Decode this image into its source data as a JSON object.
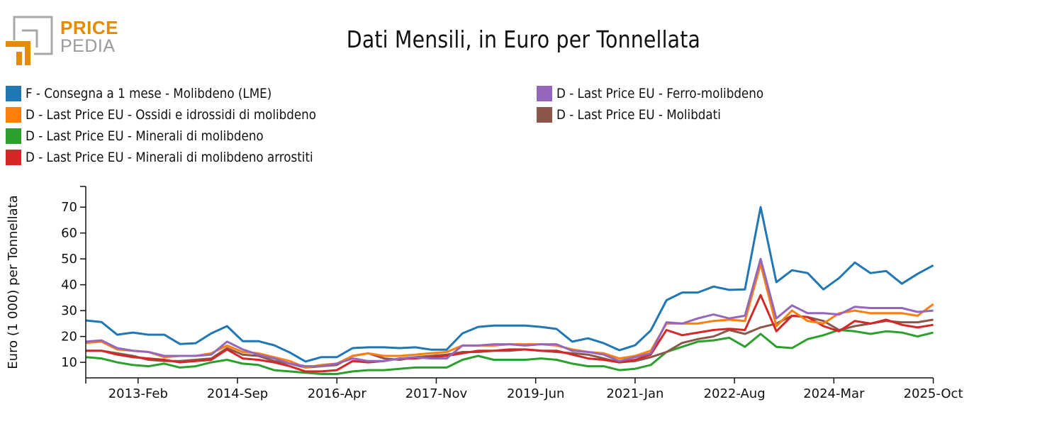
{
  "brand": {
    "line1": "PRICE",
    "line2": "PEDIA",
    "accent": "#e68a00",
    "gray": "#9a9a9a"
  },
  "chart_data": {
    "type": "line",
    "title": "Dati Mensili, in Euro per Tonnellata",
    "xlabel": "",
    "ylabel": "Euro (1 000) per Tonnellata",
    "ylim": [
      4,
      78
    ],
    "yticks": [
      10,
      20,
      30,
      40,
      50,
      60,
      70
    ],
    "xtick_labels": [
      "2013-Feb",
      "2014-Sep",
      "2016-Apr",
      "2017-Nov",
      "2019-Jun",
      "2021-Jan",
      "2022-Aug",
      "2024-Mar",
      "2025-Oct"
    ],
    "xtick_months": [
      10,
      29,
      48,
      67,
      86,
      105,
      124,
      143,
      162
    ],
    "x_start": "2012-Apr",
    "x_step_months": 3,
    "legend_placement": "top-left",
    "grid": false,
    "x": [
      "2012-Apr",
      "2012-Jul",
      "2012-Oct",
      "2013-Jan",
      "2013-Apr",
      "2013-Jul",
      "2013-Oct",
      "2014-Jan",
      "2014-Apr",
      "2014-Jul",
      "2014-Oct",
      "2015-Jan",
      "2015-Apr",
      "2015-Jul",
      "2015-Oct",
      "2016-Jan",
      "2016-Apr",
      "2016-Jul",
      "2016-Oct",
      "2017-Jan",
      "2017-Apr",
      "2017-Jul",
      "2017-Oct",
      "2018-Jan",
      "2018-Apr",
      "2018-Jul",
      "2018-Oct",
      "2019-Jan",
      "2019-Apr",
      "2019-Jul",
      "2019-Oct",
      "2020-Jan",
      "2020-Apr",
      "2020-Jul",
      "2020-Oct",
      "2021-Jan",
      "2021-Apr",
      "2021-Jul",
      "2021-Oct",
      "2022-Jan",
      "2022-Apr",
      "2022-Jul",
      "2022-Oct",
      "2023-Jan",
      "2023-Apr",
      "2023-Jul",
      "2023-Oct",
      "2024-Jan",
      "2024-Apr",
      "2024-Jul",
      "2024-Oct",
      "2025-Jan",
      "2025-Apr",
      "2025-Jul",
      "2025-Oct"
    ],
    "series": [
      {
        "name": "F - Consegna a 1 mese - Molibdeno (LME)",
        "color": "#1f77b4",
        "values": [
          26.2,
          25.6,
          20.7,
          21.5,
          20.7,
          20.7,
          17.1,
          17.4,
          21.2,
          24.0,
          18.2,
          18.2,
          16.6,
          13.8,
          10.3,
          12.0,
          12.0,
          15.5,
          15.8,
          15.8,
          15.5,
          15.8,
          14.9,
          14.9,
          21.2,
          23.7,
          24.2,
          24.2,
          24.2,
          23.7,
          22.9,
          18.0,
          19.3,
          17.4,
          14.7,
          16.6,
          22.3,
          34.0,
          37.0,
          37.0,
          39.3,
          38.0,
          38.2,
          70.0,
          41.0,
          45.6,
          44.5,
          38.2,
          42.6,
          48.6,
          44.5,
          45.3,
          40.4,
          44.2,
          47.5
        ]
      },
      {
        "name": "D - Last Price EU - Ossidi e idrossidi di molibdeno",
        "color": "#ff7f0e",
        "values": [
          17.5,
          18.0,
          15.0,
          14.5,
          14.0,
          12.0,
          12.5,
          12.5,
          13.5,
          16.5,
          14.0,
          13.5,
          12.0,
          10.5,
          8.0,
          9.0,
          9.5,
          12.5,
          13.5,
          12.5,
          12.5,
          13.0,
          13.5,
          14.0,
          16.5,
          16.5,
          16.5,
          17.0,
          17.0,
          17.0,
          16.5,
          15.0,
          14.0,
          13.5,
          11.5,
          12.5,
          14.5,
          25.0,
          25.0,
          25.0,
          26.0,
          26.5,
          26.0,
          48.0,
          24.0,
          30.0,
          26.0,
          25.0,
          29.0,
          30.0,
          29.0,
          29.0,
          29.0,
          28.0,
          32.5
        ]
      },
      {
        "name": "D - Last Price EU - Minerali di molibdeno",
        "color": "#2ca02c",
        "values": [
          12.0,
          11.5,
          10.0,
          9.0,
          8.5,
          9.5,
          8.0,
          8.5,
          10.0,
          11.0,
          9.5,
          9.0,
          7.0,
          6.5,
          6.0,
          5.5,
          5.5,
          6.5,
          7.0,
          7.0,
          7.5,
          8.0,
          8.0,
          8.0,
          11.0,
          12.5,
          11.0,
          11.0,
          11.0,
          11.5,
          11.0,
          9.5,
          8.5,
          8.5,
          7.0,
          7.5,
          9.0,
          14.0,
          16.0,
          18.0,
          18.5,
          19.5,
          16.0,
          21.0,
          16.0,
          15.5,
          19.0,
          20.5,
          22.5,
          22.0,
          21.0,
          22.0,
          21.5,
          20.0,
          21.5
        ]
      },
      {
        "name": "D - Last Price EU - Minerali di molibdeno arrostiti",
        "color": "#d62728",
        "values": [
          14.5,
          14.5,
          13.0,
          12.0,
          11.5,
          11.0,
          10.0,
          10.5,
          11.0,
          15.0,
          11.5,
          11.0,
          10.0,
          8.5,
          6.5,
          6.5,
          7.0,
          10.5,
          10.0,
          10.5,
          11.5,
          11.5,
          12.0,
          12.5,
          13.5,
          14.5,
          14.5,
          15.0,
          15.0,
          14.5,
          14.5,
          13.0,
          11.5,
          11.0,
          10.0,
          11.0,
          13.0,
          22.5,
          20.5,
          21.5,
          22.5,
          23.0,
          22.5,
          36.0,
          22.0,
          28.0,
          27.5,
          24.0,
          22.0,
          26.0,
          25.0,
          26.5,
          24.5,
          23.5,
          24.5
        ]
      },
      {
        "name": "D - Last Price EU - Ferro-molibdeno",
        "color": "#9467bd",
        "values": [
          18.0,
          18.5,
          15.5,
          14.5,
          14.0,
          12.5,
          12.5,
          12.5,
          13.0,
          18.0,
          15.0,
          13.0,
          11.5,
          9.5,
          8.5,
          8.5,
          9.5,
          11.5,
          10.5,
          10.5,
          11.5,
          12.0,
          11.5,
          11.5,
          16.5,
          16.5,
          17.0,
          17.0,
          16.5,
          17.0,
          17.0,
          14.5,
          14.0,
          13.0,
          10.5,
          12.0,
          13.5,
          25.5,
          25.0,
          27.0,
          28.5,
          27.0,
          28.0,
          50.0,
          27.0,
          32.0,
          29.0,
          29.0,
          28.5,
          31.5,
          31.0,
          31.0,
          31.0,
          29.5,
          30.0
        ]
      },
      {
        "name": "D - Last Price EU - Molibdati",
        "color": "#8c564b",
        "values": [
          14.5,
          14.5,
          13.5,
          12.5,
          11.0,
          10.5,
          10.5,
          11.0,
          11.5,
          15.5,
          13.0,
          12.5,
          10.5,
          9.5,
          8.0,
          8.5,
          9.0,
          12.5,
          13.5,
          11.5,
          11.0,
          12.0,
          12.5,
          13.0,
          14.0,
          14.0,
          14.5,
          14.5,
          15.0,
          14.5,
          14.0,
          13.5,
          13.0,
          11.5,
          10.0,
          10.5,
          12.0,
          14.0,
          17.5,
          19.0,
          20.0,
          22.5,
          21.0,
          23.5,
          25.0,
          28.0,
          27.5,
          26.0,
          22.5,
          24.0,
          25.0,
          26.0,
          25.5,
          25.5,
          26.5
        ]
      }
    ]
  }
}
